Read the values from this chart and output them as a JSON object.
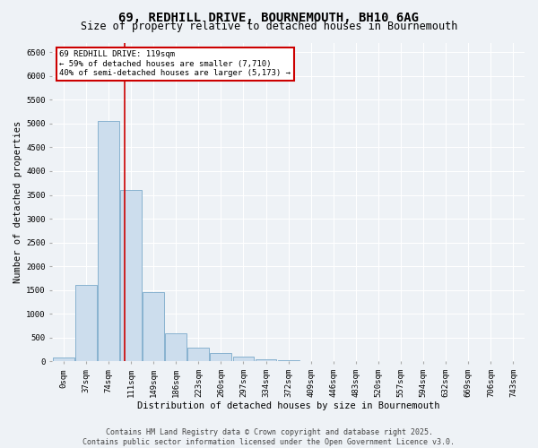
{
  "title_line1": "69, REDHILL DRIVE, BOURNEMOUTH, BH10 6AG",
  "title_line2": "Size of property relative to detached houses in Bournemouth",
  "xlabel": "Distribution of detached houses by size in Bournemouth",
  "ylabel": "Number of detached properties",
  "bin_labels": [
    "0sqm",
    "37sqm",
    "74sqm",
    "111sqm",
    "149sqm",
    "186sqm",
    "223sqm",
    "260sqm",
    "297sqm",
    "334sqm",
    "372sqm",
    "409sqm",
    "446sqm",
    "483sqm",
    "520sqm",
    "557sqm",
    "594sqm",
    "632sqm",
    "669sqm",
    "706sqm",
    "743sqm"
  ],
  "bar_values": [
    75,
    1600,
    5050,
    3600,
    1450,
    600,
    300,
    175,
    100,
    50,
    20,
    8,
    4,
    2,
    1,
    0,
    0,
    0,
    0,
    0,
    0
  ],
  "bar_color": "#ccdded",
  "bar_edge_color": "#7aaaca",
  "ylim": [
    0,
    6700
  ],
  "yticks": [
    0,
    500,
    1000,
    1500,
    2000,
    2500,
    3000,
    3500,
    4000,
    4500,
    5000,
    5500,
    6000,
    6500
  ],
  "vline_color": "#cc0000",
  "annotation_box_text": "69 REDHILL DRIVE: 119sqm\n← 59% of detached houses are smaller (7,710)\n40% of semi-detached houses are larger (5,173) →",
  "annotation_box_color": "#cc0000",
  "annotation_box_fill": "#ffffff",
  "footer_line1": "Contains HM Land Registry data © Crown copyright and database right 2025.",
  "footer_line2": "Contains public sector information licensed under the Open Government Licence v3.0.",
  "background_color": "#eef2f6",
  "plot_background": "#eef2f6",
  "grid_color": "#ffffff",
  "title_fontsize": 10,
  "subtitle_fontsize": 8.5,
  "axis_label_fontsize": 7.5,
  "tick_fontsize": 6.5,
  "annotation_fontsize": 6.5,
  "footer_fontsize": 6.0
}
